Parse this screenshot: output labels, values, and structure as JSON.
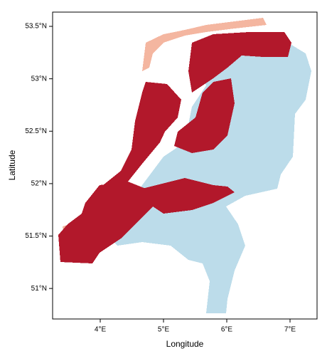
{
  "map": {
    "x_label": "Longitude",
    "y_label": "Latitude",
    "xlim": [
      3.247,
      7.427
    ],
    "ylim": [
      50.709,
      53.636
    ],
    "xticks": [
      {
        "value": 4,
        "label": "4°E"
      },
      {
        "value": 5,
        "label": "5°E"
      },
      {
        "value": 6,
        "label": "6°E"
      },
      {
        "value": 7,
        "label": "7°E"
      }
    ],
    "yticks": [
      {
        "value": 51,
        "label": "51°N"
      },
      {
        "value": 51.5,
        "label": "51.5°N"
      },
      {
        "value": 52,
        "label": "52°N"
      },
      {
        "value": 52.5,
        "label": "52.5°N"
      },
      {
        "value": 53,
        "label": "53°N"
      },
      {
        "value": 53.5,
        "label": "53.5°N"
      }
    ]
  }
}
